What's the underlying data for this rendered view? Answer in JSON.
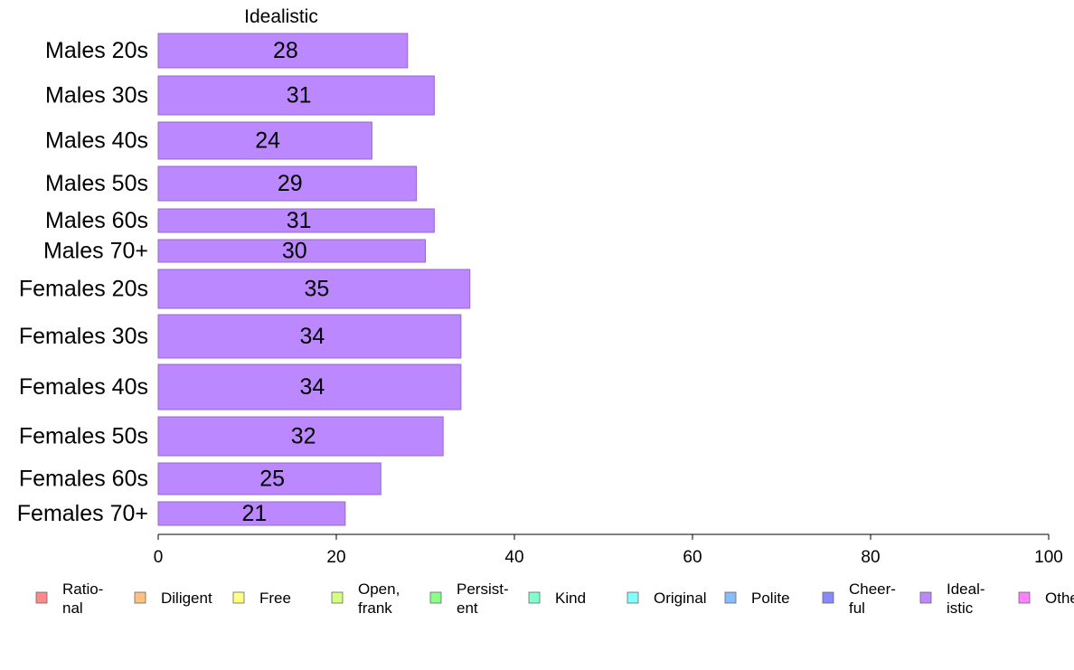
{
  "chart_data": {
    "type": "bar",
    "orientation": "horizontal",
    "title": "Idealistic",
    "categories": [
      "Males 20s",
      "Males 30s",
      "Males 40s",
      "Males 50s",
      "Males 60s",
      "Males 70+",
      "Females 20s",
      "Females 30s",
      "Females 40s",
      "Females 50s",
      "Females 60s",
      "Females 70+"
    ],
    "values": [
      28,
      31,
      24,
      29,
      31,
      30,
      35,
      34,
      34,
      32,
      25,
      21
    ],
    "bar_color": "#bb88ff",
    "bar_stroke": "#9966cc",
    "xlim": [
      0,
      100
    ],
    "xticks": [
      0,
      20,
      40,
      60,
      80,
      100
    ],
    "xtick_labels": [
      "0",
      "20",
      "40",
      "60",
      "80",
      "100"
    ],
    "grid": false,
    "legend_position": "bottom",
    "legend": [
      {
        "label": [
          "Ratio-",
          "nal"
        ],
        "color": "#ff8888"
      },
      {
        "label": [
          "Diligent"
        ],
        "color": "#ffc080"
      },
      {
        "label": [
          "Free"
        ],
        "color": "#ffff80"
      },
      {
        "label": [
          "Open,",
          "frank"
        ],
        "color": "#d4ff80"
      },
      {
        "label": [
          "Persist-",
          "ent"
        ],
        "color": "#88ff88"
      },
      {
        "label": [
          "Kind"
        ],
        "color": "#80ffcc"
      },
      {
        "label": [
          "Original"
        ],
        "color": "#80ffff"
      },
      {
        "label": [
          "Polite"
        ],
        "color": "#88bbff"
      },
      {
        "label": [
          "Cheer-",
          "ful"
        ],
        "color": "#8888ff"
      },
      {
        "label": [
          "Ideal-",
          "istic"
        ],
        "color": "#bb88ff"
      },
      {
        "label": [
          "Others"
        ],
        "color": "#ff80ff"
      }
    ]
  }
}
